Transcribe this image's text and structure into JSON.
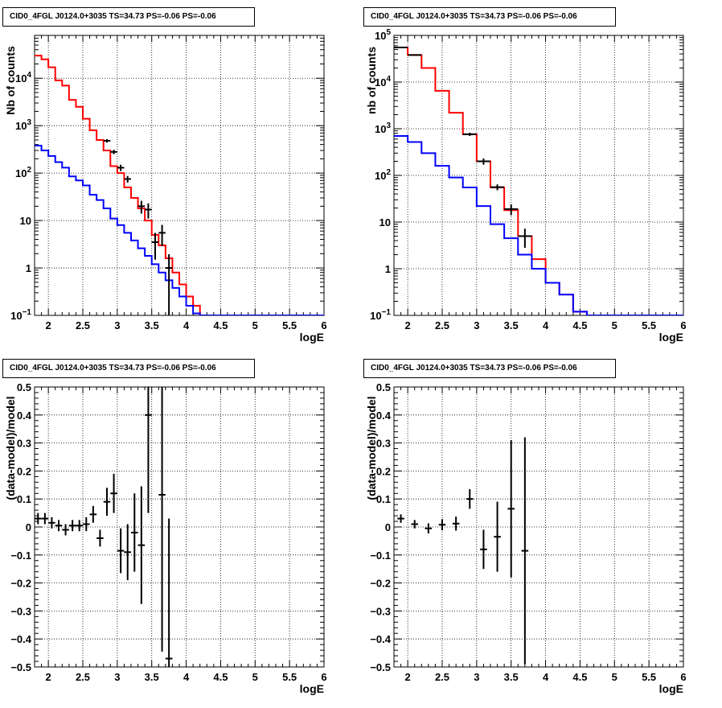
{
  "panels": [
    {
      "title": "CID0_4FGL J0124.0+3035 TS=34.73 PS=-0.06 PS=-0.06"
    },
    {
      "title": "CID0_4FGL J0124.0+3035 TS=34.73 PS=-0.06 PS=-0.06"
    },
    {
      "title": "CID0_4FGL J0124.0+3035 TS=34.73 PS=-0.06 PS=-0.06"
    },
    {
      "title": "CID0_4FGL J0124.0+3035 TS=34.73 PS=-0.06 PS=-0.06"
    }
  ],
  "colors": {
    "data": "#000000",
    "total_model": "#ff0000",
    "component_model": "#0000ff",
    "grid": "#000000"
  },
  "chart_data": [
    {
      "type": "line",
      "title": "CID0_4FGL J0124.0+3035 TS=34.73 PS=-0.06 PS=-0.06",
      "xlabel": "logE",
      "ylabel": "Nb of counts",
      "xlim": [
        1.8,
        6.0
      ],
      "ylim": [
        0.1,
        80000
      ],
      "yscale": "log",
      "grid": true,
      "xticks": [
        "2",
        "2.5",
        "3",
        "3.5",
        "4",
        "4.5",
        "5",
        "5.5",
        "6"
      ],
      "yticks": [
        "10^-1",
        "1",
        "10",
        "10^2",
        "10^3",
        "10^4"
      ],
      "bin_edges": [
        1.8,
        1.9,
        2.0,
        2.1,
        2.2,
        2.3,
        2.4,
        2.5,
        2.6,
        2.7,
        2.8,
        2.9,
        3.0,
        3.1,
        3.2,
        3.3,
        3.4,
        3.5,
        3.6,
        3.7,
        3.8,
        3.9,
        4.0,
        4.1,
        4.2,
        4.3,
        4.4,
        4.5,
        4.6,
        4.7,
        4.8,
        4.9,
        5.0,
        5.1,
        5.2,
        5.3,
        5.4,
        5.5,
        5.6,
        5.7,
        5.8,
        5.9,
        6.0
      ],
      "series": [
        {
          "color": "#ff0000",
          "values": [
            30000,
            25000,
            17000,
            9000,
            7000,
            3500,
            2500,
            1400,
            800,
            500,
            300,
            140,
            100,
            50,
            30,
            18,
            10,
            5,
            3,
            1.6,
            0.8,
            0.45,
            0.25,
            0.16,
            0.1,
            0.1,
            0.1,
            0.1,
            0.1,
            0.1,
            0.1,
            0.1,
            0.1,
            0.1,
            0.1,
            0.1,
            0.1,
            0.1,
            0.1,
            0.1,
            0.1,
            0.1
          ]
        },
        {
          "color": "#0000ff",
          "values": [
            380,
            300,
            230,
            170,
            130,
            85,
            70,
            55,
            35,
            27,
            18,
            11,
            8,
            5.5,
            3.8,
            2.6,
            1.8,
            1.2,
            0.8,
            0.55,
            0.38,
            0.25,
            0.16,
            0.11,
            0.1,
            0.1,
            0.1,
            0.1,
            0.1,
            0.1,
            0.1,
            0.1,
            0.1,
            0.1,
            0.1,
            0.1,
            0.1,
            0.1,
            0.1,
            0.1,
            0.1,
            0.1
          ]
        }
      ],
      "points": [
        {
          "x": 2.85,
          "y": 480,
          "err": 40
        },
        {
          "x": 2.95,
          "y": 280,
          "err": 30
        },
        {
          "x": 3.05,
          "y": 130,
          "err": 20
        },
        {
          "x": 3.15,
          "y": 75,
          "err": 12
        },
        {
          "x": 3.35,
          "y": 20,
          "err": 6
        },
        {
          "x": 3.45,
          "y": 17,
          "err": 6
        },
        {
          "x": 3.55,
          "y": 3.5,
          "err": 2.0
        },
        {
          "x": 3.65,
          "y": 5.5,
          "err": 2.6
        },
        {
          "x": 3.75,
          "y": 1.0,
          "err": 0.95
        }
      ]
    },
    {
      "type": "line",
      "title": "CID0_4FGL J0124.0+3035 TS=34.73 PS=-0.06 PS=-0.06",
      "xlabel": "logE",
      "ylabel": "nb of counts",
      "xlim": [
        1.8,
        6.0
      ],
      "ylim": [
        0.1,
        100000
      ],
      "yscale": "log",
      "grid": true,
      "xticks": [
        "2",
        "2.5",
        "3",
        "3.5",
        "4",
        "4.5",
        "5",
        "5.5",
        "6"
      ],
      "yticks": [
        "10^-1",
        "1",
        "10",
        "10^2",
        "10^3",
        "10^4",
        "10^5"
      ],
      "bin_edges": [
        1.8,
        2.0,
        2.2,
        2.4,
        2.6,
        2.8,
        3.0,
        3.2,
        3.4,
        3.6,
        3.8,
        4.0,
        4.2,
        4.4,
        4.6,
        4.8,
        5.0,
        5.2,
        5.4,
        5.6,
        5.8,
        6.0
      ],
      "series": [
        {
          "color": "#ff0000",
          "values": [
            55000,
            38000,
            20000,
            6500,
            2200,
            760,
            200,
            55,
            18,
            5,
            1.6,
            0.5,
            0.28,
            0.12,
            0.1,
            0.1,
            0.1,
            0.1,
            0.1,
            0.1,
            0.1
          ]
        },
        {
          "color": "#0000ff",
          "values": [
            700,
            520,
            300,
            160,
            90,
            55,
            22,
            9,
            4.5,
            2,
            1,
            0.5,
            0.28,
            0.12,
            0.1,
            0.1,
            0.1,
            0.1,
            0.1,
            0.1,
            0.1
          ]
        }
      ],
      "points": [
        {
          "x": 1.9,
          "y": 55000,
          "err": 500
        },
        {
          "x": 2.1,
          "y": 38000,
          "err": 400
        },
        {
          "x": 2.9,
          "y": 760,
          "err": 60
        },
        {
          "x": 3.1,
          "y": 200,
          "err": 30
        },
        {
          "x": 3.3,
          "y": 56,
          "err": 8
        },
        {
          "x": 3.5,
          "y": 19,
          "err": 5
        },
        {
          "x": 3.7,
          "y": 5,
          "err": 2.2
        }
      ]
    },
    {
      "type": "scatter",
      "title": "CID0_4FGL J0124.0+3035 TS=34.73 PS=-0.06 PS=-0.06",
      "xlabel": "logE",
      "ylabel": "(data-model)/model",
      "xlim": [
        1.8,
        6.0
      ],
      "ylim": [
        -0.5,
        0.5
      ],
      "grid": true,
      "xticks": [
        "2",
        "2.5",
        "3",
        "3.5",
        "4",
        "4.5",
        "5",
        "5.5",
        "6"
      ],
      "yticks": [
        "-0.5",
        "-0.4",
        "-0.3",
        "-0.2",
        "-0.1",
        "0",
        "0.1",
        "0.2",
        "0.3",
        "0.4",
        "0.5"
      ],
      "points": [
        {
          "x": 1.85,
          "y": 0.03,
          "err": 0.02
        },
        {
          "x": 1.95,
          "y": 0.03,
          "err": 0.02
        },
        {
          "x": 2.05,
          "y": 0.015,
          "err": 0.02
        },
        {
          "x": 2.15,
          "y": 0.005,
          "err": 0.02
        },
        {
          "x": 2.25,
          "y": -0.01,
          "err": 0.02
        },
        {
          "x": 2.35,
          "y": 0.005,
          "err": 0.02
        },
        {
          "x": 2.45,
          "y": 0.005,
          "err": 0.02
        },
        {
          "x": 2.55,
          "y": 0.01,
          "err": 0.025
        },
        {
          "x": 2.65,
          "y": 0.045,
          "err": 0.03
        },
        {
          "x": 2.75,
          "y": -0.04,
          "err": 0.03
        },
        {
          "x": 2.85,
          "y": 0.09,
          "err": 0.05
        },
        {
          "x": 2.95,
          "y": 0.12,
          "err": 0.07
        },
        {
          "x": 3.05,
          "y": -0.085,
          "err": 0.08
        },
        {
          "x": 3.15,
          "y": -0.09,
          "err": 0.1
        },
        {
          "x": 3.25,
          "y": -0.02,
          "err": 0.14
        },
        {
          "x": 3.35,
          "y": -0.065,
          "err": 0.21
        },
        {
          "x": 3.45,
          "y": 0.4,
          "err": 0.35
        },
        {
          "x": 3.65,
          "y": 0.115,
          "err": 0.56
        },
        {
          "x": 3.75,
          "y": -0.47,
          "err": 0.5
        }
      ]
    },
    {
      "type": "scatter",
      "title": "CID0_4FGL J0124.0+3035 TS=34.73 PS=-0.06 PS=-0.06",
      "xlabel": "logE",
      "ylabel": "(data-model)/model",
      "xlim": [
        1.8,
        6.0
      ],
      "ylim": [
        -0.5,
        0.5
      ],
      "grid": true,
      "xticks": [
        "2",
        "2.5",
        "3",
        "3.5",
        "4",
        "4.5",
        "5",
        "5.5",
        "6"
      ],
      "yticks": [
        "-0.5",
        "-0.4",
        "-0.3",
        "-0.2",
        "-0.1",
        "0",
        "0.1",
        "0.2",
        "0.3",
        "0.4",
        "0.5"
      ],
      "points": [
        {
          "x": 1.9,
          "y": 0.03,
          "err": 0.015
        },
        {
          "x": 2.1,
          "y": 0.01,
          "err": 0.015
        },
        {
          "x": 2.3,
          "y": -0.005,
          "err": 0.018
        },
        {
          "x": 2.5,
          "y": 0.008,
          "err": 0.02
        },
        {
          "x": 2.7,
          "y": 0.012,
          "err": 0.025
        },
        {
          "x": 2.9,
          "y": 0.1,
          "err": 0.035
        },
        {
          "x": 3.1,
          "y": -0.08,
          "err": 0.07
        },
        {
          "x": 3.3,
          "y": -0.035,
          "err": 0.125
        },
        {
          "x": 3.5,
          "y": 0.065,
          "err": 0.245
        },
        {
          "x": 3.7,
          "y": -0.085,
          "err": 0.405
        }
      ]
    }
  ]
}
